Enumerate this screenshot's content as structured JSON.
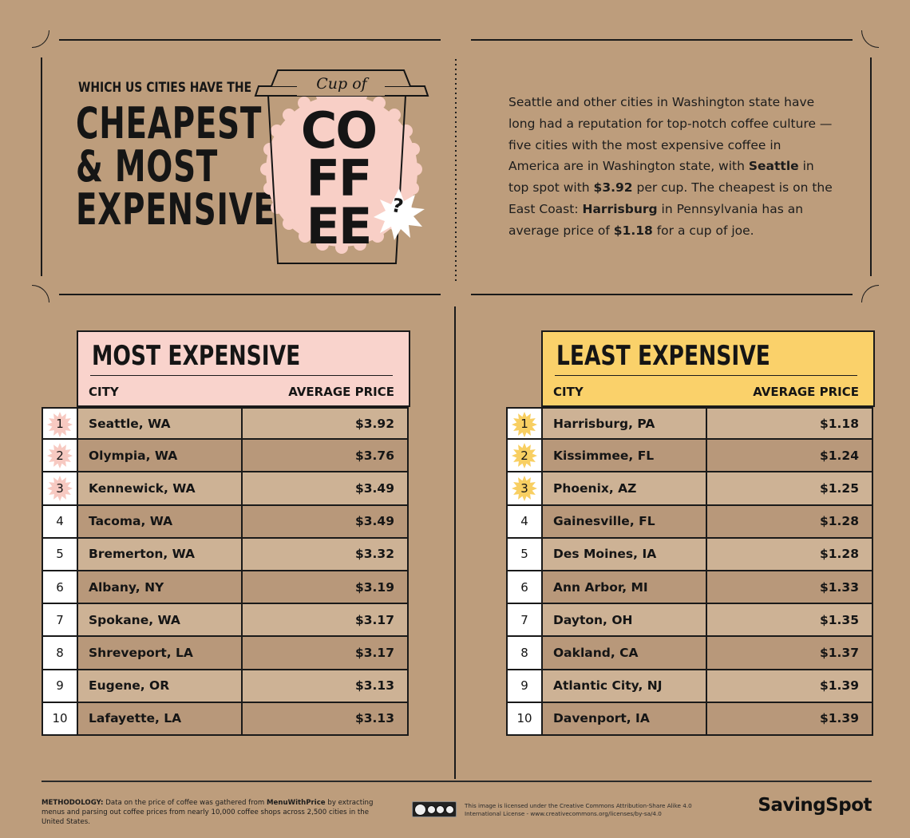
{
  "header": {
    "subtitle": "WHICH US CITIES HAVE THE",
    "title_lines": [
      "CHEAPEST",
      "& MOST",
      "EXPENSIVE"
    ],
    "cup_label": "Cup of",
    "cup_word_lines": [
      "CO",
      "FF",
      "EE"
    ],
    "question_mark": "?"
  },
  "intro": {
    "p1": "Seattle and other cities in Washington state have long had a reputation for top-notch coffee culture — five cities with the most expensive coffee in America are in Washington state, with ",
    "bold1": "Seattle",
    "p2": " in top spot with ",
    "bold2": "$3.92",
    "p3": " per cup. The cheapest is on the East Coast: ",
    "bold3": "Harrisburg",
    "p4": " in Pennsylvania has an average price of ",
    "bold4": "$1.18",
    "p5": " for a cup of joe."
  },
  "most_expensive": {
    "title": "MOST EXPENSIVE",
    "col_city": "CITY",
    "col_price": "AVERAGE PRICE",
    "accent": "#f9d3cc",
    "star_color": "#f7c9c1",
    "rows": [
      {
        "rank": "1",
        "city": "Seattle, WA",
        "price": "$3.92"
      },
      {
        "rank": "2",
        "city": "Olympia, WA",
        "price": "$3.76"
      },
      {
        "rank": "3",
        "city": "Kennewick, WA",
        "price": "$3.49"
      },
      {
        "rank": "4",
        "city": "Tacoma, WA",
        "price": "$3.49"
      },
      {
        "rank": "5",
        "city": "Bremerton, WA",
        "price": "$3.32"
      },
      {
        "rank": "6",
        "city": "Albany, NY",
        "price": "$3.19"
      },
      {
        "rank": "7",
        "city": "Spokane, WA",
        "price": "$3.17"
      },
      {
        "rank": "8",
        "city": "Shreveport, LA",
        "price": "$3.17"
      },
      {
        "rank": "9",
        "city": "Eugene, OR",
        "price": "$3.13"
      },
      {
        "rank": "10",
        "city": "Lafayette, LA",
        "price": "$3.13"
      }
    ]
  },
  "least_expensive": {
    "title": "LEAST EXPENSIVE",
    "col_city": "CITY",
    "col_price": "AVERAGE PRICE",
    "accent": "#fad16a",
    "star_color": "#f8cf62",
    "rows": [
      {
        "rank": "1",
        "city": "Harrisburg, PA",
        "price": "$1.18"
      },
      {
        "rank": "2",
        "city": "Kissimmee, FL",
        "price": "$1.24"
      },
      {
        "rank": "3",
        "city": "Phoenix, AZ",
        "price": "$1.25"
      },
      {
        "rank": "4",
        "city": "Gainesville, FL",
        "price": "$1.28"
      },
      {
        "rank": "5",
        "city": "Des Moines, IA",
        "price": "$1.28"
      },
      {
        "rank": "6",
        "city": "Ann Arbor, MI",
        "price": "$1.33"
      },
      {
        "rank": "7",
        "city": "Dayton, OH",
        "price": "$1.35"
      },
      {
        "rank": "8",
        "city": "Oakland, CA",
        "price": "$1.37"
      },
      {
        "rank": "9",
        "city": "Atlantic City, NJ",
        "price": "$1.39"
      },
      {
        "rank": "10",
        "city": "Davenport, IA",
        "price": "$1.39"
      }
    ]
  },
  "footer": {
    "method_label": "METHODOLOGY:",
    "method_p1": " Data on the price of coffee was gathered from ",
    "method_bold": "MenuWithPrice",
    "method_p2": " by extracting menus and parsing out coffee prices from nearly 10,000 coffee shops across 2,500 cities in the United States.",
    "license_line1": "This image is licensed under the Creative Commons Attribution-Share Alike 4.0",
    "license_line2": "International License - www.creativecommons.org/licenses/by-sa/4.0",
    "cc_labels": [
      "BY",
      "NC",
      "SA"
    ],
    "brand": "SavingSpot"
  }
}
